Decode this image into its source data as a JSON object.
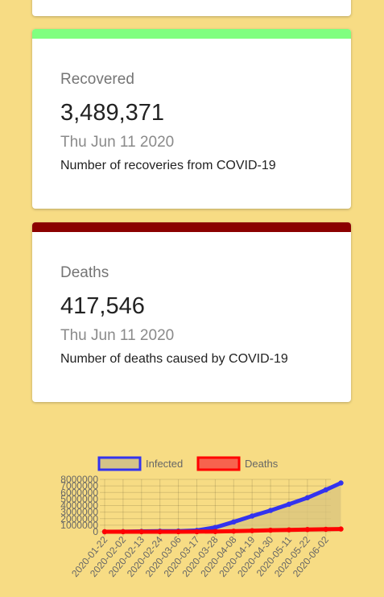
{
  "cards": {
    "recovered": {
      "color": "#80ff80",
      "label": "Recovered",
      "value": "3,489,371",
      "date": "Thu Jun 11 2020",
      "description": "Number of recoveries from COVID-19"
    },
    "deaths": {
      "color": "#8b0000",
      "label": "Deaths",
      "value": "417,546",
      "date": "Thu Jun 11 2020",
      "description": "Number of deaths caused by COVID-19"
    }
  },
  "chart_data": {
    "type": "line",
    "x_tick_labels": [
      "2020-01-22",
      "2020-02-02",
      "2020-02-13",
      "2020-02-24",
      "2020-03-06",
      "2020-03-17",
      "2020-03-28",
      "2020-04-08",
      "2020-04-19",
      "2020-04-30",
      "2020-05-11",
      "2020-05-22",
      "2020-06-02"
    ],
    "x": [
      "2020-01-22",
      "2020-02-02",
      "2020-02-13",
      "2020-02-24",
      "2020-03-06",
      "2020-03-17",
      "2020-03-28",
      "2020-04-08",
      "2020-04-19",
      "2020-04-30",
      "2020-05-11",
      "2020-05-22",
      "2020-06-02",
      "2020-06-11"
    ],
    "y_tick_labels": [
      "0",
      "1000000",
      "2000000",
      "3000000",
      "4000000",
      "5000000",
      "6000000",
      "7000000",
      "8000000"
    ],
    "ylim": [
      0,
      8000000
    ],
    "series": [
      {
        "name": "Infected",
        "border_color": "#3333ee",
        "fill_color": "#d9c47e",
        "legend_fill": "#d4c388",
        "values": [
          555,
          17000,
          60000,
          80000,
          100000,
          200000,
          660000,
          1500000,
          2400000,
          3250000,
          4200000,
          5200000,
          6400000,
          7450000
        ]
      },
      {
        "name": "Deaths",
        "border_color": "#ff0000",
        "fill_color": "#ff0000",
        "legend_fill": "#f7634e",
        "values": [
          17,
          360,
          1400,
          2700,
          3500,
          8000,
          31000,
          89000,
          165000,
          234000,
          287000,
          340000,
          380000,
          417546
        ]
      }
    ],
    "grid": true,
    "legend_position": "top-center"
  }
}
